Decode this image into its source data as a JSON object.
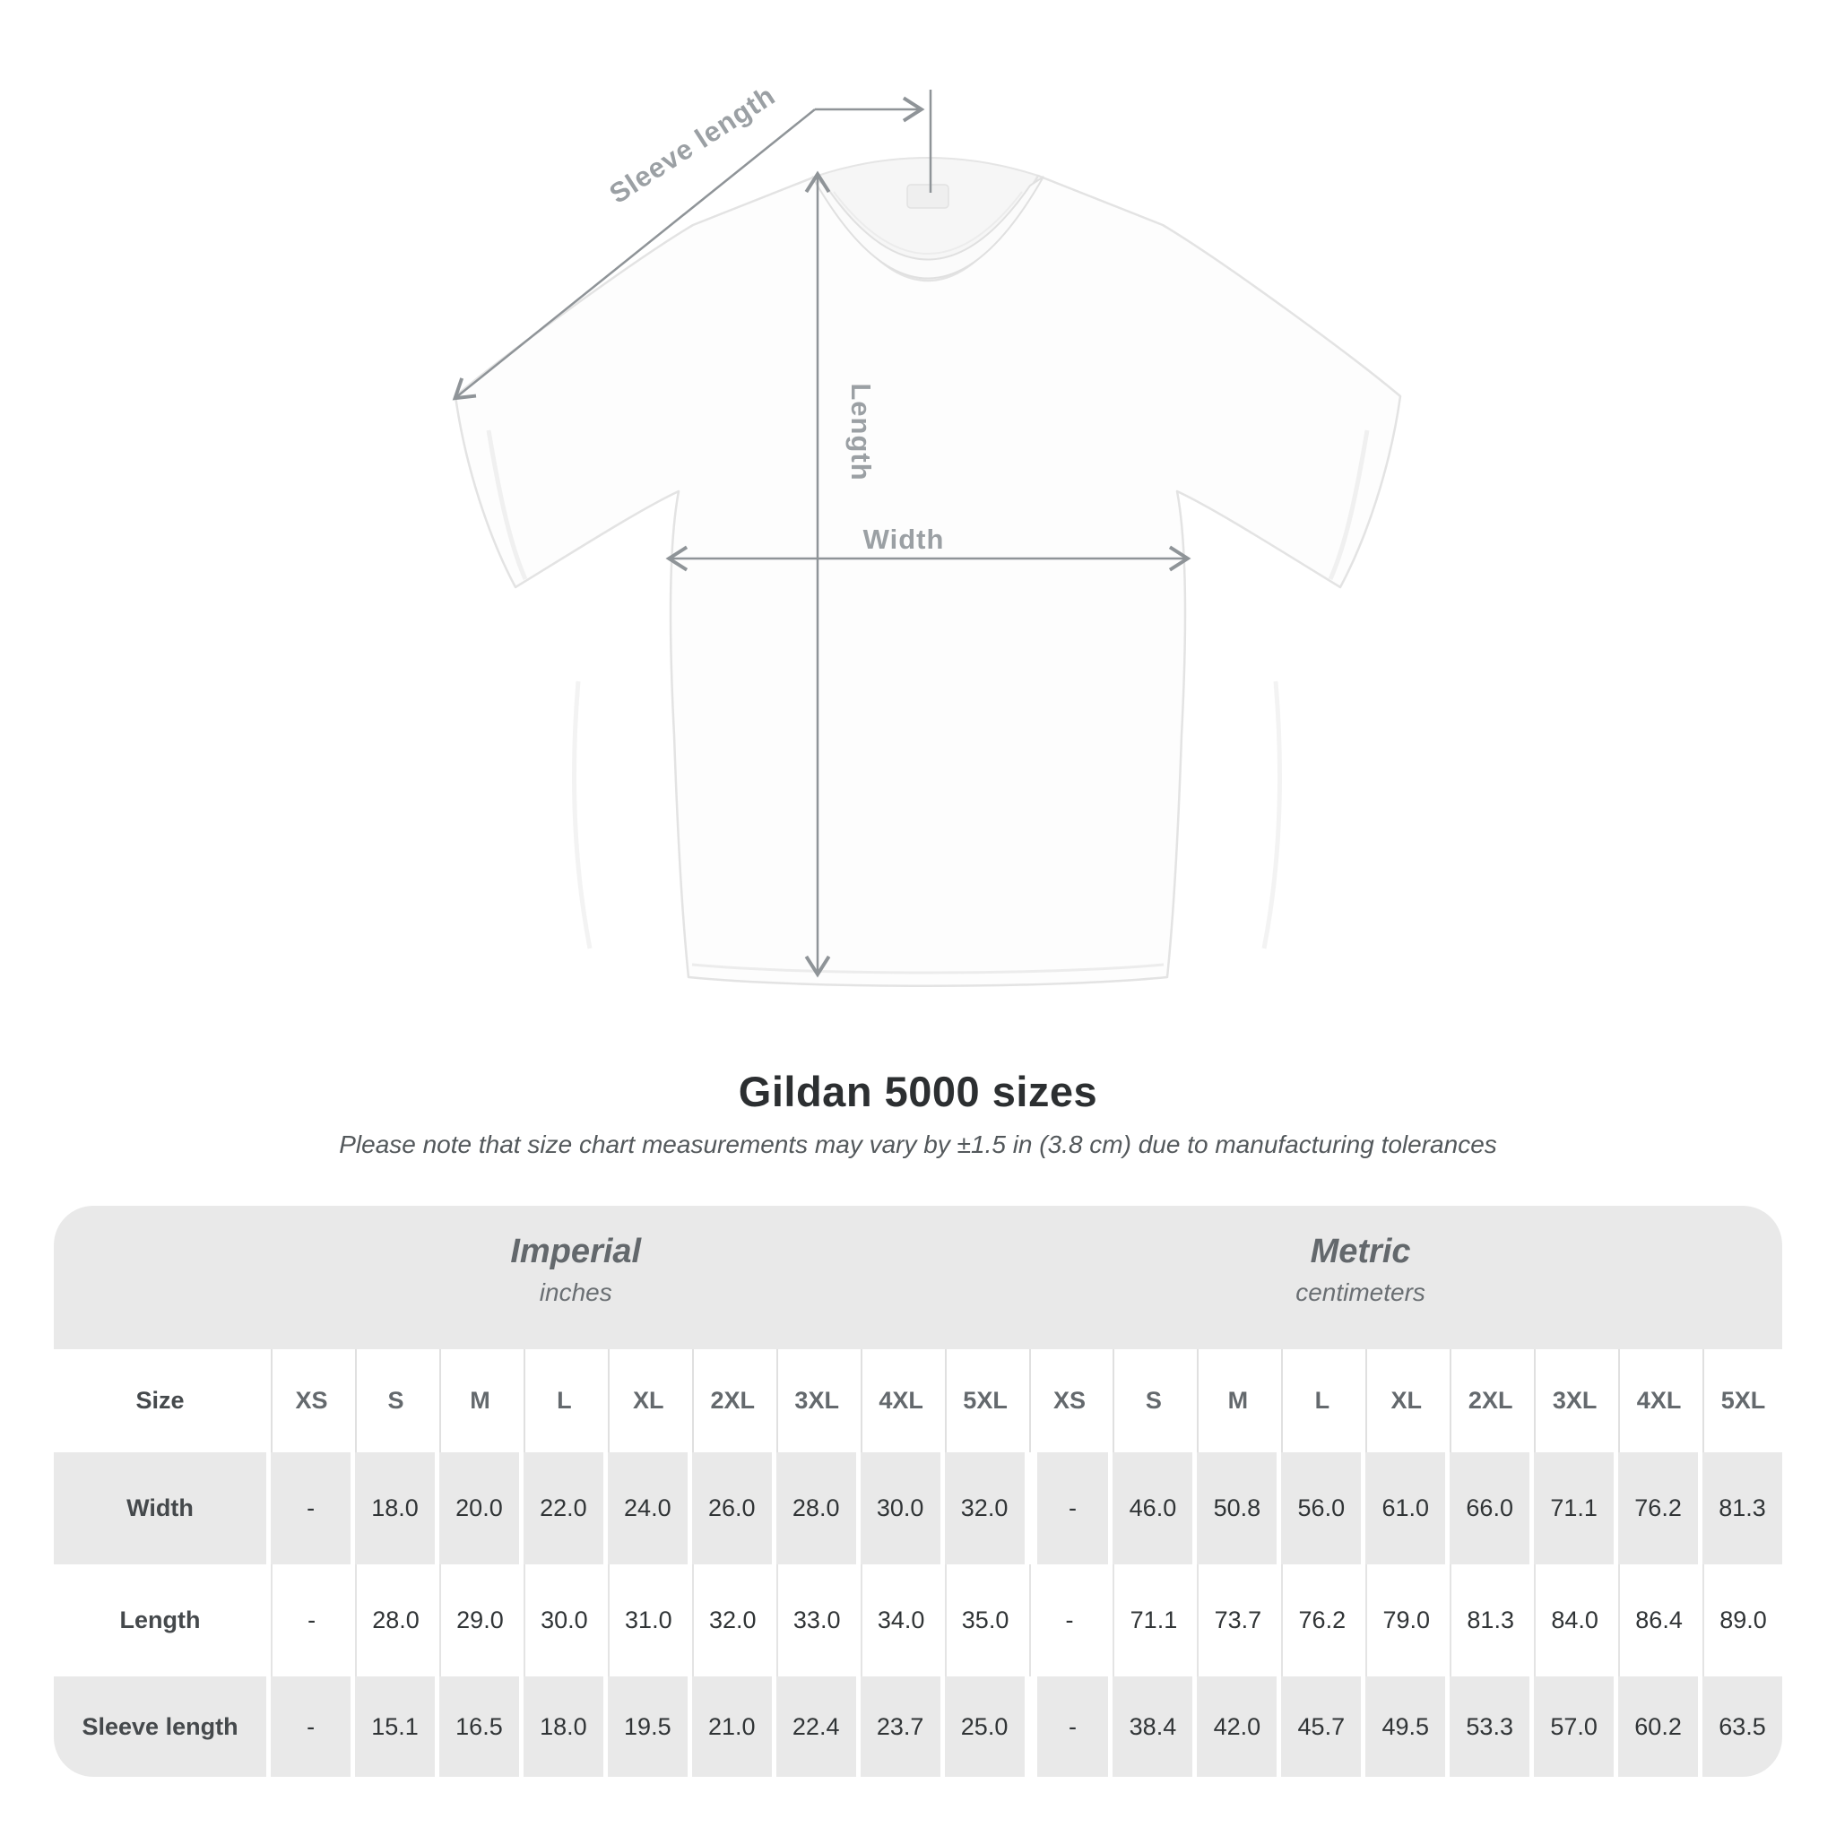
{
  "shirt_diagram": {
    "labels": {
      "sleeve_length": "Sleeve length",
      "length": "Length",
      "width": "Width"
    }
  },
  "header": {
    "title": "Gildan 5000 sizes",
    "subtitle": "Please note that size chart measurements may vary by ±1.5 in (3.8 cm) due to manufacturing tolerances"
  },
  "table": {
    "groups": [
      {
        "label": "Imperial",
        "sublabel": "inches"
      },
      {
        "label": "Metric",
        "sublabel": "centimeters"
      }
    ],
    "size_header": "Size",
    "sizes": [
      "XS",
      "S",
      "M",
      "L",
      "XL",
      "2XL",
      "3XL",
      "4XL",
      "5XL"
    ],
    "rows": [
      {
        "label": "Width",
        "imperial": [
          "-",
          "18.0",
          "20.0",
          "22.0",
          "24.0",
          "26.0",
          "28.0",
          "30.0",
          "32.0"
        ],
        "metric": [
          "-",
          "46.0",
          "50.8",
          "56.0",
          "61.0",
          "66.0",
          "71.1",
          "76.2",
          "81.3"
        ]
      },
      {
        "label": "Length",
        "imperial": [
          "-",
          "28.0",
          "29.0",
          "30.0",
          "31.0",
          "32.0",
          "33.0",
          "34.0",
          "35.0"
        ],
        "metric": [
          "-",
          "71.1",
          "73.7",
          "76.2",
          "79.0",
          "81.3",
          "84.0",
          "86.4",
          "89.0"
        ]
      },
      {
        "label": "Sleeve length",
        "imperial": [
          "-",
          "15.1",
          "16.5",
          "18.0",
          "19.5",
          "21.0",
          "22.4",
          "23.7",
          "25.0"
        ],
        "metric": [
          "-",
          "38.4",
          "42.0",
          "45.7",
          "49.5",
          "53.3",
          "57.0",
          "60.2",
          "63.5"
        ]
      }
    ]
  },
  "colors": {
    "table_shade": "#e9e9e9",
    "title_text": "#2c2f31",
    "subtitle_text": "#53585b",
    "header_text": "#64696d",
    "data_text": "#303436",
    "arrow": "#8f9498",
    "measure_label": "#9ba0a4",
    "shirt_outline": "#e3e3e3"
  }
}
